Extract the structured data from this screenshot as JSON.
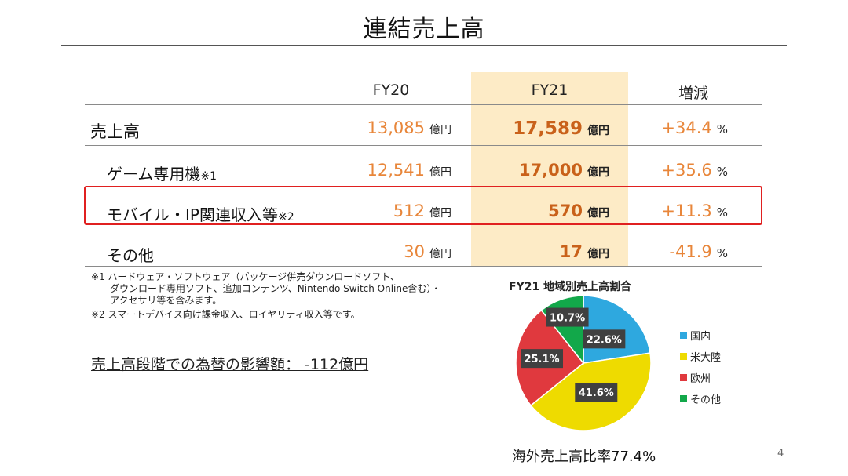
{
  "title": "連結売上高",
  "table": {
    "headers": {
      "fy20": "FY20",
      "fy21": "FY21",
      "change": "増減"
    },
    "rows": [
      {
        "label": "売上高",
        "note": "",
        "fy20": "13,085",
        "fy20_unit": "億円",
        "fy21": "17,589",
        "fy21_unit": "億円",
        "change": "+34.4",
        "change_unit": "%"
      },
      {
        "label": "ゲーム専用機",
        "note": "※1",
        "fy20": "12,541",
        "fy20_unit": "億円",
        "fy21": "17,000",
        "fy21_unit": "億円",
        "change": "+35.6",
        "change_unit": "%"
      },
      {
        "label": "モバイル・IP関連収入等",
        "note": "※2",
        "fy20": "512",
        "fy20_unit": "億円",
        "fy21": "570",
        "fy21_unit": "億円",
        "change": "+11.3",
        "change_unit": "%"
      },
      {
        "label": "その他",
        "note": "",
        "fy20": "30",
        "fy20_unit": "億円",
        "fy21": "17",
        "fy21_unit": "億円",
        "change": "-41.9",
        "change_unit": "%"
      }
    ]
  },
  "footnotes": [
    "※1 ハードウェア・ソフトウェア（パッケージ併売ダウンロードソフト、",
    "　　ダウンロード専用ソフト、追加コンテンツ、Nintendo Switch Online含む）・",
    "　　アクセサリ等を含みます。",
    "※2 スマートデバイス向け課金収入、ロイヤリティ収入等です。"
  ],
  "fx_impact": "売上高段階での為替の影響額： -112億円",
  "chart_data": {
    "type": "pie",
    "title": "FY21 地域別売上高割合",
    "slices": [
      {
        "name": "国内",
        "value": 22.6,
        "label": "22.6%",
        "color": "#2ea8df"
      },
      {
        "name": "米大陸",
        "value": 41.6,
        "label": "41.6%",
        "color": "#eedb00"
      },
      {
        "name": "欧州",
        "value": 25.1,
        "label": "25.1%",
        "color": "#e0393e"
      },
      {
        "name": "その他",
        "value": 10.7,
        "label": "10.7%",
        "color": "#12a84a"
      }
    ],
    "legend_position": "right"
  },
  "overseas_ratio": "海外売上高比率77.4%",
  "page_number": "4"
}
